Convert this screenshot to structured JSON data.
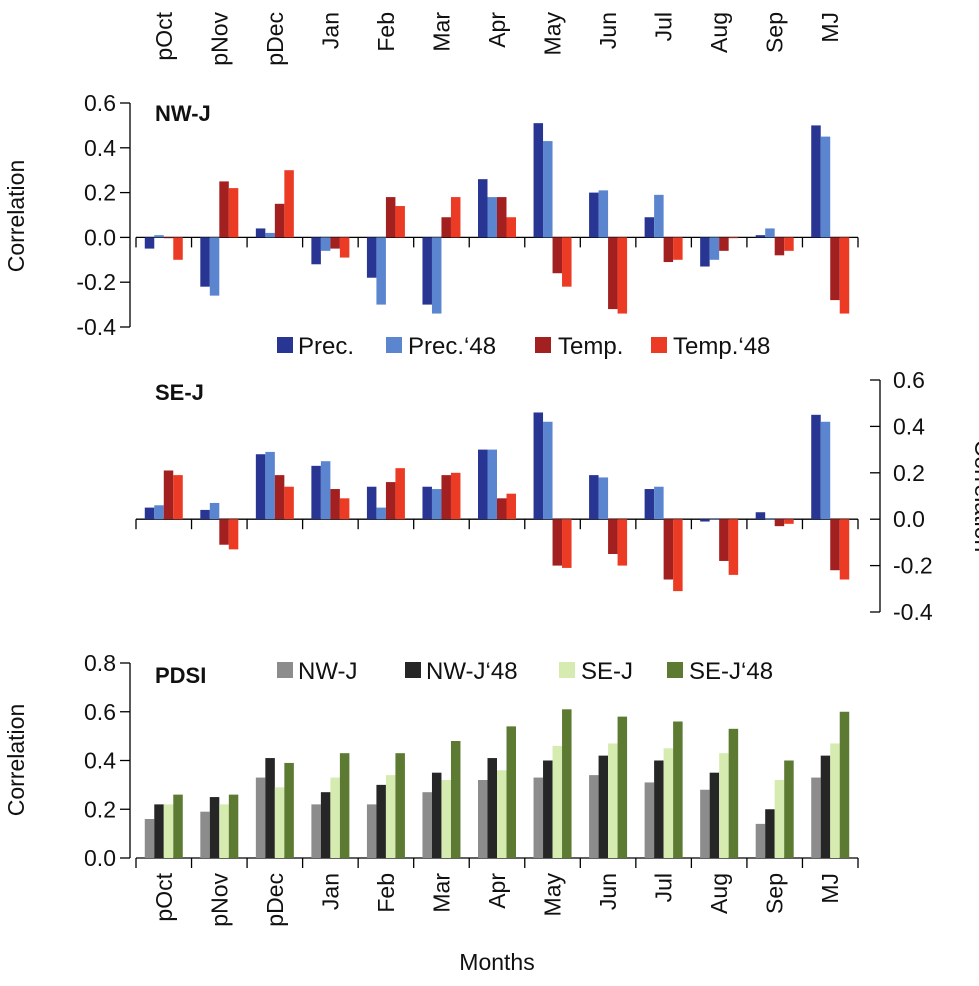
{
  "chart_data": [
    {
      "type": "bar",
      "title": "NW-J",
      "ylabel": "Correlation",
      "xlabel": "",
      "ylim": [
        -0.4,
        0.6
      ],
      "yticks": [
        -0.4,
        -0.2,
        0.0,
        0.2,
        0.4,
        0.6
      ],
      "y_axis_side": "left",
      "categories": [
        "pOct",
        "pNov",
        "pDec",
        "Jan",
        "Feb",
        "Mar",
        "Apr",
        "May",
        "Jun",
        "Jul",
        "Aug",
        "Sep",
        "MJ"
      ],
      "series": [
        {
          "name": "Prec.",
          "color": "#283593",
          "values": [
            -0.05,
            -0.22,
            0.04,
            -0.12,
            -0.18,
            -0.3,
            0.26,
            0.51,
            0.2,
            0.09,
            -0.13,
            0.01,
            0.5
          ]
        },
        {
          "name": "Prec.‘48",
          "color": "#5b86cf",
          "values": [
            0.01,
            -0.26,
            0.02,
            -0.06,
            -0.3,
            -0.34,
            0.18,
            0.43,
            0.21,
            0.19,
            -0.1,
            0.04,
            0.45
          ]
        },
        {
          "name": "Temp.",
          "color": "#a32020",
          "values": [
            0.0,
            0.25,
            0.15,
            -0.05,
            0.18,
            0.09,
            0.18,
            -0.16,
            -0.32,
            -0.11,
            -0.06,
            -0.08,
            -0.28
          ]
        },
        {
          "name": "Temp.‘48",
          "color": "#ec3b24",
          "values": [
            -0.1,
            0.22,
            0.3,
            -0.09,
            0.14,
            0.18,
            0.09,
            -0.22,
            -0.34,
            -0.1,
            0.0,
            -0.06,
            -0.34
          ]
        }
      ],
      "legend": "below",
      "grid": false
    },
    {
      "type": "bar",
      "title": "SE-J",
      "ylabel": "Correlation",
      "xlabel": "",
      "ylim": [
        -0.4,
        0.6
      ],
      "yticks": [
        -0.4,
        -0.2,
        0.0,
        0.2,
        0.4,
        0.6
      ],
      "y_axis_side": "right",
      "categories": [
        "pOct",
        "pNov",
        "pDec",
        "Jan",
        "Feb",
        "Mar",
        "Apr",
        "May",
        "Jun",
        "Jul",
        "Aug",
        "Sep",
        "MJ"
      ],
      "series": [
        {
          "name": "Prec.",
          "color": "#283593",
          "values": [
            0.05,
            0.04,
            0.28,
            0.23,
            0.14,
            0.14,
            0.3,
            0.46,
            0.19,
            0.13,
            -0.01,
            0.03,
            0.45
          ]
        },
        {
          "name": "Prec.‘48",
          "color": "#5b86cf",
          "values": [
            0.06,
            0.07,
            0.29,
            0.25,
            0.05,
            0.13,
            0.3,
            0.42,
            0.18,
            0.14,
            0.0,
            0.0,
            0.42
          ]
        },
        {
          "name": "Temp.",
          "color": "#a32020",
          "values": [
            0.21,
            -0.11,
            0.19,
            0.13,
            0.16,
            0.19,
            0.09,
            -0.2,
            -0.15,
            -0.26,
            -0.18,
            -0.03,
            -0.22
          ]
        },
        {
          "name": "Temp.‘48",
          "color": "#ec3b24",
          "values": [
            0.19,
            -0.13,
            0.14,
            0.09,
            0.22,
            0.2,
            0.11,
            -0.21,
            -0.2,
            -0.31,
            -0.24,
            -0.02,
            -0.26
          ]
        }
      ],
      "grid": false
    },
    {
      "type": "bar",
      "title": "PDSI",
      "ylabel": "Correlation",
      "xlabel": "Months",
      "ylim": [
        0.0,
        0.8
      ],
      "yticks": [
        0.0,
        0.2,
        0.4,
        0.6,
        0.8
      ],
      "y_axis_side": "left",
      "categories": [
        "pOct",
        "pNov",
        "pDec",
        "Jan",
        "Feb",
        "Mar",
        "Apr",
        "May",
        "Jun",
        "Jul",
        "Aug",
        "Sep",
        "MJ"
      ],
      "series": [
        {
          "name": "NW-J",
          "color": "#8c8c8c",
          "values": [
            0.16,
            0.19,
            0.33,
            0.22,
            0.22,
            0.27,
            0.32,
            0.33,
            0.34,
            0.31,
            0.28,
            0.14,
            0.33
          ]
        },
        {
          "name": "NW-J‘48",
          "color": "#262626",
          "values": [
            0.22,
            0.25,
            0.41,
            0.27,
            0.3,
            0.35,
            0.41,
            0.4,
            0.42,
            0.4,
            0.35,
            0.2,
            0.42
          ]
        },
        {
          "name": "SE-J",
          "color": "#d5ebb0",
          "values": [
            0.22,
            0.22,
            0.29,
            0.33,
            0.34,
            0.32,
            0.36,
            0.46,
            0.47,
            0.45,
            0.43,
            0.32,
            0.47
          ]
        },
        {
          "name": "SE-J‘48",
          "color": "#5c7a32",
          "values": [
            0.26,
            0.26,
            0.39,
            0.43,
            0.43,
            0.48,
            0.54,
            0.61,
            0.58,
            0.56,
            0.53,
            0.4,
            0.6
          ]
        }
      ],
      "legend": "top",
      "grid": false
    }
  ]
}
